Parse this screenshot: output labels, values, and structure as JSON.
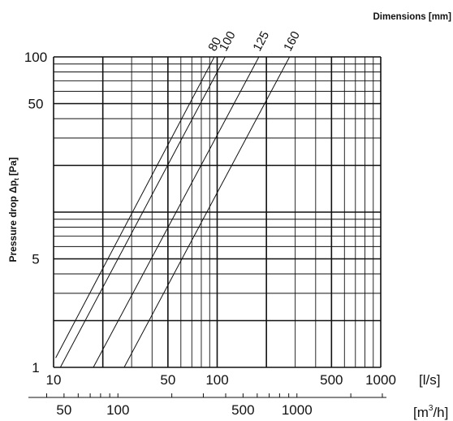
{
  "chart_data": {
    "type": "line",
    "title": "",
    "legend_title": "Dimensions [mm]",
    "ylabel": "Pressure drop Δp",
    "ylabel_sub": "t",
    "ylabel_unit": "[Pa]",
    "xlabel_primary": "[l/s]",
    "xlabel_secondary_base": "[m",
    "xlabel_secondary_sup": "3",
    "xlabel_secondary_tail": "/h]",
    "x_scale": "log",
    "y_scale": "log",
    "xlim": [
      10,
      1000
    ],
    "ylim": [
      1,
      100
    ],
    "grid": true,
    "x_ticks": [
      {
        "value": 10,
        "label": "10"
      },
      {
        "value": 50,
        "label": "50"
      },
      {
        "value": 100,
        "label": "100"
      },
      {
        "value": 500,
        "label": "500"
      },
      {
        "value": 1000,
        "label": "1000"
      }
    ],
    "x2_ticks": [
      {
        "value": 50,
        "label": "50"
      },
      {
        "value": 100,
        "label": "100"
      },
      {
        "value": 500,
        "label": "500"
      },
      {
        "value": 1000,
        "label": "1000"
      }
    ],
    "y_ticks": [
      {
        "value": 1,
        "label": "1"
      },
      {
        "value": 5,
        "label": "5"
      },
      {
        "value": 50,
        "label": "50"
      },
      {
        "value": 100,
        "label": "100"
      }
    ],
    "series": [
      {
        "name": "80",
        "points": [
          [
            10.3,
            1.15
          ],
          [
            96,
            100
          ]
        ]
      },
      {
        "name": "100",
        "points": [
          [
            11.0,
            1.0
          ],
          [
            112,
            100
          ]
        ]
      },
      {
        "name": "125",
        "points": [
          [
            17.5,
            1.0
          ],
          [
            180,
            100
          ]
        ]
      },
      {
        "name": "160",
        "points": [
          [
            27.0,
            1.0
          ],
          [
            277,
            100
          ]
        ]
      }
    ]
  }
}
